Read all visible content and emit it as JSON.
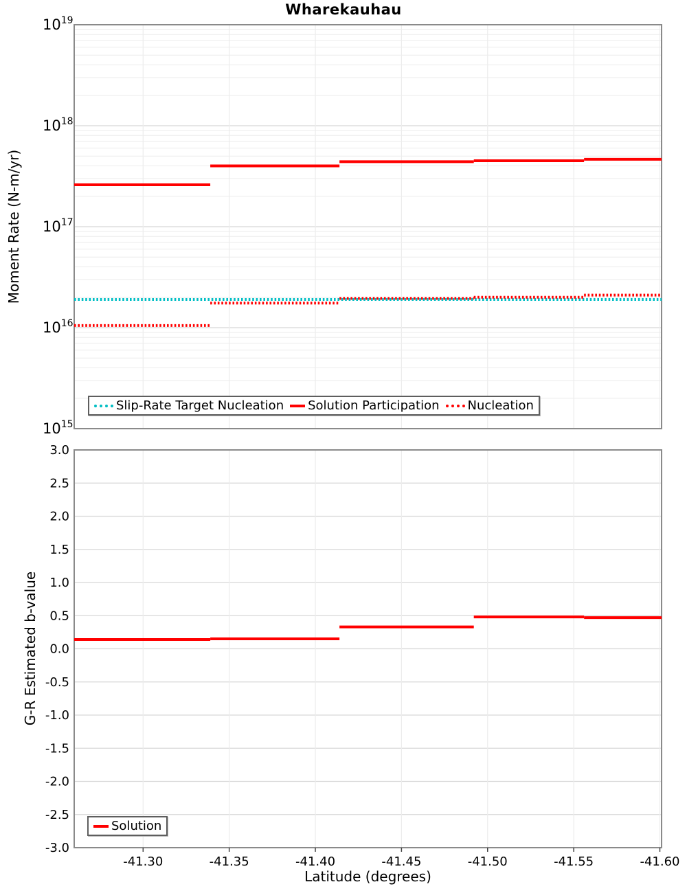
{
  "title": "Wharekauhau",
  "xlabel": "Latitude (degrees)",
  "colors": {
    "red": "#ff0000",
    "teal": "#00bec4",
    "grid_major": "#d7d7d7",
    "grid_minor": "#ececec",
    "frame": "#8a8a8a",
    "tick": "#444444",
    "legend_border": "#5e5e5e"
  },
  "chart_data": [
    {
      "type": "line",
      "title": "Wharekauhau",
      "ylabel": "Moment Rate (N-m/yr)",
      "yscale": "log",
      "ylim": [
        1000000000000000.0,
        1e+19
      ],
      "ytick_exponents": [
        19,
        18,
        17,
        16,
        15
      ],
      "xlim": [
        -41.26,
        -41.601
      ],
      "xticks": [
        -41.3,
        -41.35,
        -41.4,
        -41.45,
        -41.5,
        -41.55,
        -41.6
      ],
      "xtick_labels": [
        "-41.30",
        "-41.35",
        "-41.40",
        "-41.45",
        "-41.50",
        "-41.55",
        "-41.60"
      ],
      "grid": true,
      "legend_position": "inside-bottom",
      "series": [
        {
          "name": "Slip-Rate Target Nucleation",
          "color_key": "teal",
          "style": "dotted",
          "segments": [
            {
              "x0": -41.26,
              "x1": -41.601,
              "y": 1.9e+16
            }
          ]
        },
        {
          "name": "Solution Participation",
          "color_key": "red",
          "style": "solid",
          "segments": [
            {
              "x0": -41.26,
              "x1": -41.339,
              "y": 2.6e+17
            },
            {
              "x0": -41.339,
              "x1": -41.414,
              "y": 4e+17
            },
            {
              "x0": -41.414,
              "x1": -41.492,
              "y": 4.4e+17
            },
            {
              "x0": -41.492,
              "x1": -41.556,
              "y": 4.5e+17
            },
            {
              "x0": -41.556,
              "x1": -41.601,
              "y": 4.65e+17
            }
          ]
        },
        {
          "name": "Nucleation",
          "color_key": "red",
          "style": "dotted",
          "segments": [
            {
              "x0": -41.26,
              "x1": -41.339,
              "y": 1.05e+16
            },
            {
              "x0": -41.339,
              "x1": -41.414,
              "y": 1.75e+16
            },
            {
              "x0": -41.414,
              "x1": -41.492,
              "y": 1.95e+16
            },
            {
              "x0": -41.492,
              "x1": -41.556,
              "y": 2e+16
            },
            {
              "x0": -41.556,
              "x1": -41.601,
              "y": 2.1e+16
            }
          ]
        }
      ]
    },
    {
      "type": "line",
      "ylabel": "G-R Estimated b-value",
      "yscale": "linear",
      "ylim": [
        -3.0,
        3.0
      ],
      "yticks": [
        3.0,
        2.5,
        2.0,
        1.5,
        1.0,
        0.5,
        0.0,
        -0.5,
        -1.0,
        -1.5,
        -2.0,
        -2.5,
        -3.0
      ],
      "ytick_labels": [
        "3.0",
        "2.5",
        "2.0",
        "1.5",
        "1.0",
        "0.5",
        "0.0",
        "-0.5",
        "-1.0",
        "-1.5",
        "-2.0",
        "-2.5",
        "-3.0"
      ],
      "xlim": [
        -41.26,
        -41.601
      ],
      "xticks": [
        -41.3,
        -41.35,
        -41.4,
        -41.45,
        -41.5,
        -41.55,
        -41.6
      ],
      "xtick_labels": [
        "-41.30",
        "-41.35",
        "-41.40",
        "-41.45",
        "-41.50",
        "-41.55",
        "-41.60"
      ],
      "xlabel": "Latitude (degrees)",
      "grid": true,
      "legend_position": "inside-bottom-left",
      "series": [
        {
          "name": "Solution",
          "color_key": "red",
          "style": "solid",
          "segments": [
            {
              "x0": -41.26,
              "x1": -41.339,
              "y": 0.14
            },
            {
              "x0": -41.339,
              "x1": -41.414,
              "y": 0.15
            },
            {
              "x0": -41.414,
              "x1": -41.492,
              "y": 0.33
            },
            {
              "x0": -41.492,
              "x1": -41.556,
              "y": 0.48
            },
            {
              "x0": -41.556,
              "x1": -41.601,
              "y": 0.47
            }
          ]
        }
      ]
    }
  ]
}
